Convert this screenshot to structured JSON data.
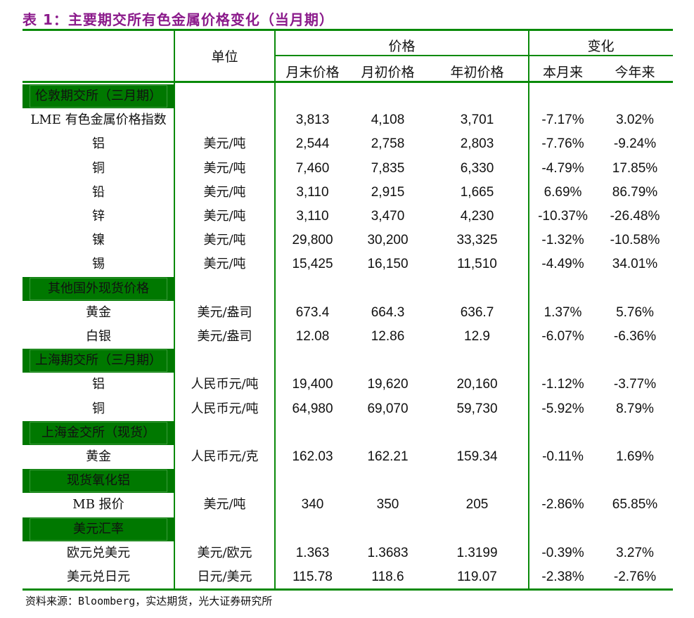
{
  "title": "表 1：主要期交所有色金属价格变化（当月期）",
  "accent_color": "#007800",
  "title_color": "#8b1a8b",
  "header": {
    "unit": "单位",
    "price": "价格",
    "change": "变化",
    "price_cols": [
      "月末价格",
      "月初价格",
      "年初价格"
    ],
    "change_cols": [
      "本月来",
      "今年来"
    ]
  },
  "rows": [
    {
      "section": "伦敦期交所（三月期）"
    },
    {
      "name": "LME 有色金属价格指数",
      "unit": "",
      "end": "3,813",
      "start": "4,108",
      "year": "3,701",
      "mtd": "-7.17%",
      "ytd": "3.02%"
    },
    {
      "name": "铝",
      "unit": "美元/吨",
      "end": "2,544",
      "start": "2,758",
      "year": "2,803",
      "mtd": "-7.76%",
      "ytd": "-9.24%"
    },
    {
      "name": "铜",
      "unit": "美元/吨",
      "end": "7,460",
      "start": "7,835",
      "year": "6,330",
      "mtd": "-4.79%",
      "ytd": "17.85%"
    },
    {
      "name": "铅",
      "unit": "美元/吨",
      "end": "3,110",
      "start": "2,915",
      "year": "1,665",
      "mtd": "6.69%",
      "ytd": "86.79%"
    },
    {
      "name": "锌",
      "unit": "美元/吨",
      "end": "3,110",
      "start": "3,470",
      "year": "4,230",
      "mtd": "-10.37%",
      "ytd": "-26.48%"
    },
    {
      "name": "镍",
      "unit": "美元/吨",
      "end": "29,800",
      "start": "30,200",
      "year": "33,325",
      "mtd": "-1.32%",
      "ytd": "-10.58%"
    },
    {
      "name": "锡",
      "unit": "美元/吨",
      "end": "15,425",
      "start": "16,150",
      "year": "11,510",
      "mtd": "-4.49%",
      "ytd": "34.01%"
    },
    {
      "section": "其他国外现货价格"
    },
    {
      "name": "黄金",
      "unit": "美元/盎司",
      "end": "673.4",
      "start": "664.3",
      "year": "636.7",
      "mtd": "1.37%",
      "ytd": "5.76%"
    },
    {
      "name": "白银",
      "unit": "美元/盎司",
      "end": "12.08",
      "start": "12.86",
      "year": "12.9",
      "mtd": "-6.07%",
      "ytd": "-6.36%"
    },
    {
      "section": "上海期交所（三月期）"
    },
    {
      "name": "铝",
      "unit": "人民币元/吨",
      "end": "19,400",
      "start": "19,620",
      "year": "20,160",
      "mtd": "-1.12%",
      "ytd": "-3.77%"
    },
    {
      "name": "铜",
      "unit": "人民币元/吨",
      "end": "64,980",
      "start": "69,070",
      "year": "59,730",
      "mtd": "-5.92%",
      "ytd": "8.79%"
    },
    {
      "section": "上海金交所（现货）"
    },
    {
      "name": "黄金",
      "unit": "人民币元/克",
      "end": "162.03",
      "start": "162.21",
      "year": "159.34",
      "mtd": "-0.11%",
      "ytd": "1.69%"
    },
    {
      "section": "现货氧化铝"
    },
    {
      "name": "MB 报价",
      "unit": "美元/吨",
      "end": "340",
      "start": "350",
      "year": "205",
      "mtd": "-2.86%",
      "ytd": "65.85%"
    },
    {
      "section": "美元汇率"
    },
    {
      "name": "欧元兑美元",
      "unit": "美元/欧元",
      "end": "1.363",
      "start": "1.3683",
      "year": "1.3199",
      "mtd": "-0.39%",
      "ytd": "3.27%"
    },
    {
      "name": "美元兑日元",
      "unit": "日元/美元",
      "end": "115.78",
      "start": "118.6",
      "year": "119.07",
      "mtd": "-2.38%",
      "ytd": "-2.76%"
    }
  ],
  "footer": "资料来源：Bloomberg，实达期货，光大证券研究所"
}
